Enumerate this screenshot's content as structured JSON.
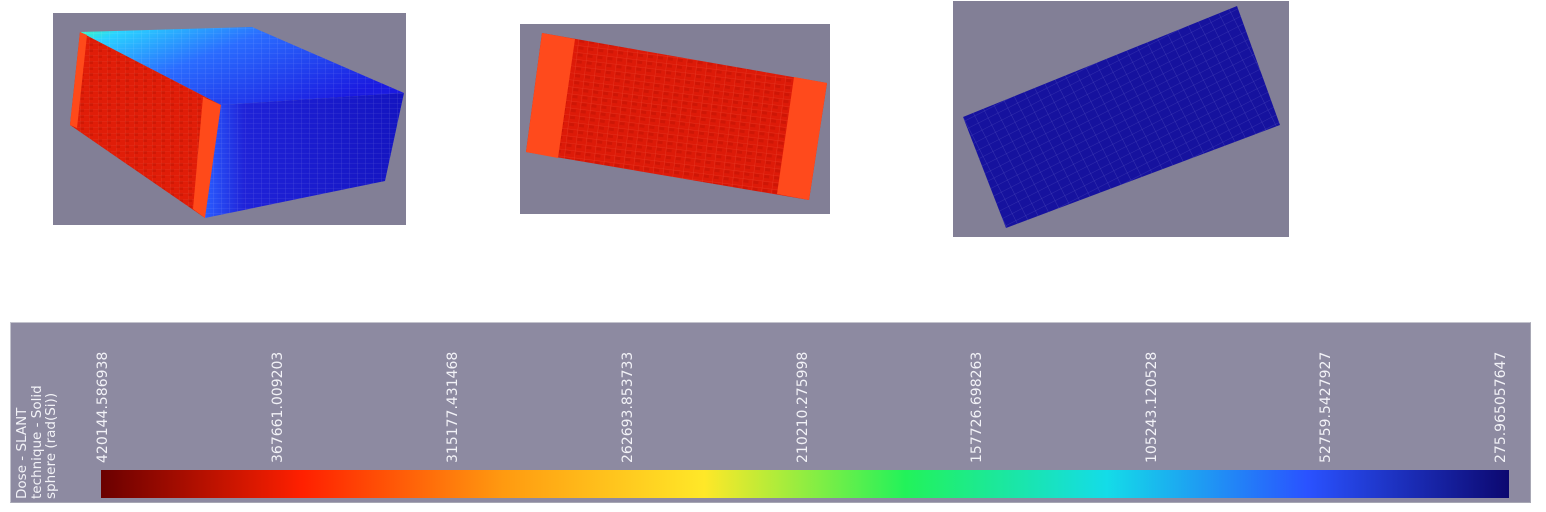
{
  "viewports": [
    {
      "name": "perspective-view",
      "background": "#827f96"
    },
    {
      "name": "top-view",
      "background": "#827f96"
    },
    {
      "name": "side-view",
      "background": "#827f96"
    }
  ],
  "legend": {
    "background": "#8d8aa1",
    "title_lines": [
      "Dose - SLANT",
      "technique - Solid",
      "sphere (rad(Si))"
    ],
    "tick_labels": [
      "420144.586938",
      "367661.009203",
      "315177.431468",
      "262693.853733",
      "210210.275998",
      "157726.698263",
      "105243.120528",
      "52759.5427927",
      "275.965057647"
    ],
    "colormap": [
      "#6a0000",
      "#ff2000",
      "#ff9a10",
      "#ffe828",
      "#22f25a",
      "#14dce8",
      "#2a52ff",
      "#0c0870"
    ]
  }
}
